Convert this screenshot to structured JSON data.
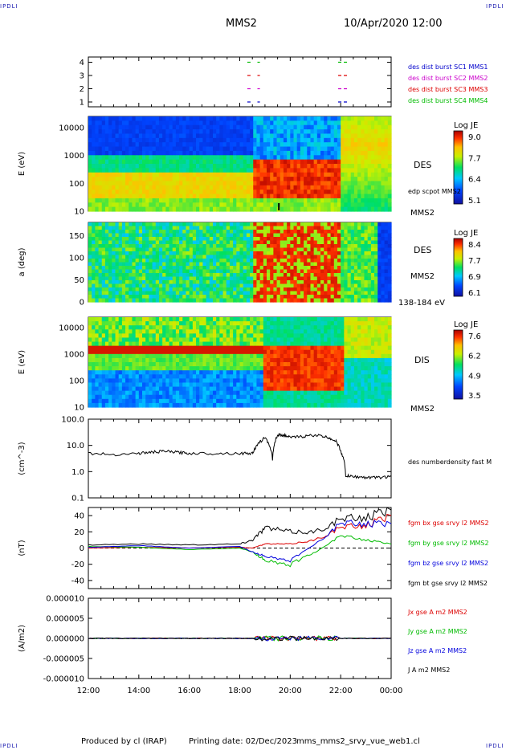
{
  "header": {
    "corner_label": "IPDLI",
    "spacecraft": "MMS2",
    "datetime": "10/Apr/2020 12:00"
  },
  "footer": {
    "produced_by": "Produced by cl (IRAP)",
    "printing_date": "Printing date: 02/Dec/2023",
    "script_name": "mms_mms2_srvy_vue_web1.cl"
  },
  "colors": {
    "mms1": "#0000cc",
    "mms2": "#cc00cc",
    "mms3": "#dd0000",
    "mms4": "#00bb00",
    "bx": "#dd0000",
    "by": "#00bb00",
    "bz": "#0000dd",
    "bt": "#000000"
  },
  "x_axis": {
    "ticks": [
      "12:00",
      "14:00",
      "16:00",
      "18:00",
      "20:00",
      "22:00",
      "00:00"
    ],
    "range_hours": [
      12,
      24
    ]
  },
  "chart_data": [
    {
      "type": "scatter",
      "panel": "burst availability",
      "y_ticks": [
        "1",
        "2",
        "3",
        "4"
      ],
      "series": [
        {
          "name": "des dist burst SC1 MMS1",
          "color": "#0000cc",
          "y": 1,
          "intervals": [
            [
              18.3,
              18.5
            ],
            [
              18.7,
              18.8
            ],
            [
              21.9,
              22.3
            ]
          ]
        },
        {
          "name": "des dist burst SC2 MMS2",
          "color": "#cc00cc",
          "y": 2,
          "intervals": [
            [
              18.3,
              18.5
            ],
            [
              18.7,
              18.8
            ],
            [
              21.9,
              22.3
            ]
          ]
        },
        {
          "name": "des dist burst SC3 MMS3",
          "color": "#dd0000",
          "y": 3,
          "intervals": [
            [
              18.3,
              18.5
            ],
            [
              18.7,
              18.8
            ],
            [
              21.9,
              22.3
            ]
          ]
        },
        {
          "name": "des dist burst SC4 MMS4",
          "color": "#00bb00",
          "y": 4,
          "intervals": [
            [
              18.3,
              18.5
            ],
            [
              18.7,
              18.8
            ],
            [
              21.9,
              22.3
            ]
          ]
        }
      ]
    },
    {
      "type": "heatmap",
      "panel": "DES energy spectrogram",
      "ylabel": "E (eV)",
      "label": "DES",
      "spacecraft": "MMS2",
      "overlay_label": "edp scpot MMS2",
      "y_ticks": [
        "10",
        "100",
        "1000",
        "10000"
      ],
      "colorbar": {
        "title": "Log JE",
        "ticks": [
          "9.0",
          "7.7",
          "6.4",
          "5.1"
        ]
      }
    },
    {
      "type": "heatmap",
      "panel": "DES pitch angle",
      "ylabel": "a (deg)",
      "label": "DES",
      "spacecraft": "MMS2",
      "energy_label": "138-184 eV",
      "y_ticks": [
        "0",
        "50",
        "100",
        "150"
      ],
      "colorbar": {
        "title": "Log JE",
        "ticks": [
          "8.4",
          "7.7",
          "6.9",
          "6.1"
        ]
      }
    },
    {
      "type": "heatmap",
      "panel": "DIS energy spectrogram",
      "ylabel": "E (eV)",
      "label": "DIS",
      "spacecraft": "MMS2",
      "y_ticks": [
        "10",
        "100",
        "1000",
        "10000"
      ],
      "colorbar": {
        "title": "Log JE",
        "ticks": [
          "7.6",
          "6.2",
          "4.9",
          "3.5"
        ]
      }
    },
    {
      "type": "line",
      "panel": "density",
      "ylabel": "(cm^-3)",
      "y_ticks": [
        "0.1",
        "1.0",
        "10.0",
        "100.0"
      ],
      "series": [
        {
          "name": "des numberdensity fast M",
          "color": "#000000",
          "x": [
            12.0,
            13.0,
            14.0,
            14.5,
            15.0,
            15.5,
            16.0,
            17.0,
            18.0,
            18.5,
            18.7,
            19.0,
            19.3,
            19.5,
            19.7,
            20.0,
            20.5,
            21.0,
            21.5,
            21.8,
            22.0,
            22.2,
            22.5,
            23.0,
            23.5,
            24.0
          ],
          "y": [
            5.0,
            4.5,
            5.0,
            5.5,
            6.0,
            5.5,
            5.0,
            5.0,
            5.0,
            5.0,
            10.0,
            20.0,
            3.0,
            25.0,
            25.0,
            20.0,
            22.0,
            25.0,
            20.0,
            15.0,
            6.0,
            0.7,
            0.65,
            0.6,
            0.6,
            0.65
          ]
        }
      ]
    },
    {
      "type": "line",
      "panel": "magnetic field",
      "ylabel": "(nT)",
      "y_ticks": [
        "-40",
        "-20",
        "0",
        "20",
        "40"
      ],
      "series": [
        {
          "name": "fgm bx gse srvy l2 MMS2",
          "color": "#dd0000",
          "x": [
            12,
            14,
            16,
            18,
            18.5,
            19,
            20,
            21,
            22,
            23,
            24
          ],
          "y": [
            0,
            1,
            0,
            1,
            0,
            5,
            5,
            10,
            25,
            28,
            40
          ]
        },
        {
          "name": "fgm by gse srvy l2 MMS2",
          "color": "#00bb00",
          "x": [
            12,
            14,
            16,
            18,
            18.5,
            19,
            20,
            21,
            22,
            23,
            24
          ],
          "y": [
            2,
            1,
            -2,
            0,
            -5,
            -15,
            -20,
            -5,
            15,
            10,
            5
          ]
        },
        {
          "name": "fgm bz gse srvy l2 MMS2",
          "color": "#0000dd",
          "x": [
            12,
            14,
            16,
            18,
            18.5,
            19,
            20,
            21,
            22,
            23,
            24
          ],
          "y": [
            1,
            3,
            0,
            2,
            -5,
            -10,
            -15,
            5,
            30,
            30,
            30
          ]
        },
        {
          "name": "fgm bt gse srvy l2 MMS2",
          "color": "#000000",
          "x": [
            12,
            14,
            16,
            18,
            18.5,
            19,
            20,
            21,
            22,
            23,
            24
          ],
          "y": [
            4,
            5,
            4,
            5,
            10,
            25,
            20,
            20,
            35,
            38,
            47
          ]
        }
      ]
    },
    {
      "type": "line",
      "panel": "current density",
      "ylabel": "(A/m2)",
      "y_ticks": [
        "-0.000010",
        "-0.000005",
        "0.000000",
        "0.000005",
        "0.000010"
      ],
      "series": [
        {
          "name": "Jx gse A m2 MMS2",
          "color": "#dd0000"
        },
        {
          "name": "Jy gse A m2 MMS2",
          "color": "#00bb00"
        },
        {
          "name": "Jz gse A m2 MMS2",
          "color": "#0000dd"
        },
        {
          "name": "J A m2 MMS2",
          "color": "#000000"
        }
      ]
    }
  ]
}
